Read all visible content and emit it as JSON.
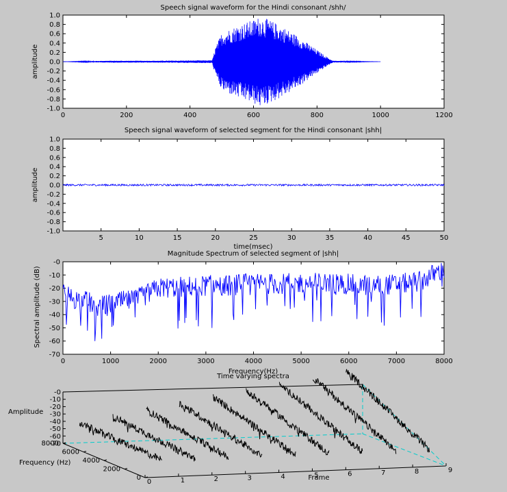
{
  "colors": {
    "background": "#c8c8c8",
    "plot_bg": "#ffffff",
    "signal": "#0000ff",
    "spectra": "#000000",
    "box_dashed": "#00cccc"
  },
  "chart_data": [
    {
      "type": "line",
      "title": "Speech signal waveform for the Hindi consonant /shh/",
      "xlabel": "",
      "ylabel": "amplitude",
      "xlim": [
        0,
        1200
      ],
      "ylim": [
        -1.0,
        1.0
      ],
      "xticks": [
        0,
        200,
        400,
        600,
        800,
        1000,
        1200
      ],
      "xtick_labels": [
        "0",
        "200",
        "400",
        "600",
        "800",
        "1000",
        "1200"
      ],
      "yticks": [
        1.0,
        0.8,
        0.6,
        0.4,
        0.2,
        0.0,
        -0.2,
        -0.4,
        -0.6,
        -0.8,
        -1.0
      ],
      "ytick_labels": [
        "1.0",
        "0.8",
        "0.6",
        "0.4",
        "0.2",
        "0.0",
        "-0.2",
        "-0.4",
        "-0.6",
        "-0.8",
        "-1.0"
      ],
      "series": [
        {
          "x": [
            0,
            140,
            300,
            470,
            480,
            500,
            550,
            600,
            620,
            650,
            700,
            750,
            800,
            840,
            850,
            900,
            1000
          ],
          "envelope": [
            0.0,
            0.02,
            0.02,
            0.03,
            0.3,
            0.62,
            0.78,
            0.9,
            0.97,
            0.9,
            0.72,
            0.5,
            0.25,
            0.06,
            0.02,
            0.01,
            0.0
          ]
        }
      ]
    },
    {
      "type": "line",
      "title": "Speech signal waveform of selected segment for the Hindi consonant |shh|",
      "xlabel": "time(msec)",
      "ylabel": "amplitude",
      "xlim": [
        0,
        50
      ],
      "ylim": [
        -1.0,
        1.0
      ],
      "xticks": [
        5,
        10,
        15,
        20,
        25,
        30,
        35,
        40,
        45,
        50
      ],
      "xtick_labels": [
        "5",
        "10",
        "15",
        "20",
        "25",
        "30",
        "35",
        "40",
        "45",
        "50"
      ],
      "yticks": [
        1.0,
        0.8,
        0.6,
        0.4,
        0.2,
        0.0,
        -0.2,
        -0.4,
        -0.6,
        -0.8,
        -1.0
      ],
      "ytick_labels": [
        "1.0",
        "0.8",
        "0.6",
        "0.4",
        "0.2",
        "0.0",
        "-0.2",
        "-0.4",
        "-0.6",
        "-0.8",
        "-1.0"
      ],
      "series": [
        {
          "x": [
            0,
            50
          ],
          "envelope": [
            0.02,
            0.02
          ]
        }
      ]
    },
    {
      "type": "line",
      "title": "Magnitude Spectrum of selected segment of |shh|",
      "xlabel": "Frequency(Hz)",
      "ylabel": "Spectral amplitude (dB)",
      "xlim": [
        0,
        8000
      ],
      "ylim": [
        -70,
        0
      ],
      "xticks": [
        0,
        1000,
        2000,
        3000,
        4000,
        5000,
        6000,
        7000,
        8000
      ],
      "xtick_labels": [
        "0",
        "1000",
        "2000",
        "3000",
        "4000",
        "5000",
        "6000",
        "7000",
        "8000"
      ],
      "yticks": [
        0,
        -10,
        -20,
        -30,
        -40,
        -50,
        -60,
        -70
      ],
      "ytick_labels": [
        "-0",
        "-10",
        "-20",
        "-30",
        "-40",
        "-50",
        "-60",
        "-70"
      ],
      "series": [
        {
          "x": [
            0,
            250,
            500,
            750,
            1000,
            1250,
            1500,
            1750,
            2000,
            2500,
            3000,
            3500,
            4000,
            4500,
            5000,
            5500,
            6000,
            6500,
            7000,
            7500,
            7800,
            8000
          ],
          "y": [
            -24,
            -28,
            -30,
            -34,
            -32,
            -30,
            -29,
            -25,
            -20,
            -19,
            -18,
            -18,
            -16,
            -17,
            -16,
            -16,
            -17,
            -18,
            -17,
            -15,
            -9,
            -6
          ]
        }
      ]
    },
    {
      "type": "surface",
      "title": "Time varying spectra",
      "xlabel": "Frame",
      "ylabel": "Frequency (Hz)",
      "zlabel": "Amplitude",
      "xticks": [
        0,
        1,
        2,
        3,
        4,
        5,
        6,
        7,
        8,
        9
      ],
      "xtick_labels": [
        "0",
        "1",
        "2",
        "3",
        "4",
        "5",
        "6",
        "7",
        "8",
        "9"
      ],
      "yticks": [
        0,
        2000,
        4000,
        6000,
        8000
      ],
      "ytick_labels": [
        "0",
        "2000",
        "4000",
        "6000",
        "8000"
      ],
      "zticks": [
        0,
        -10,
        -20,
        -30,
        -40,
        -50,
        -60,
        -70
      ],
      "ztick_labels": [
        "-0",
        "-10",
        "-20",
        "-30",
        "-40",
        "-50",
        "-60",
        "-70"
      ],
      "frames": 9
    }
  ]
}
